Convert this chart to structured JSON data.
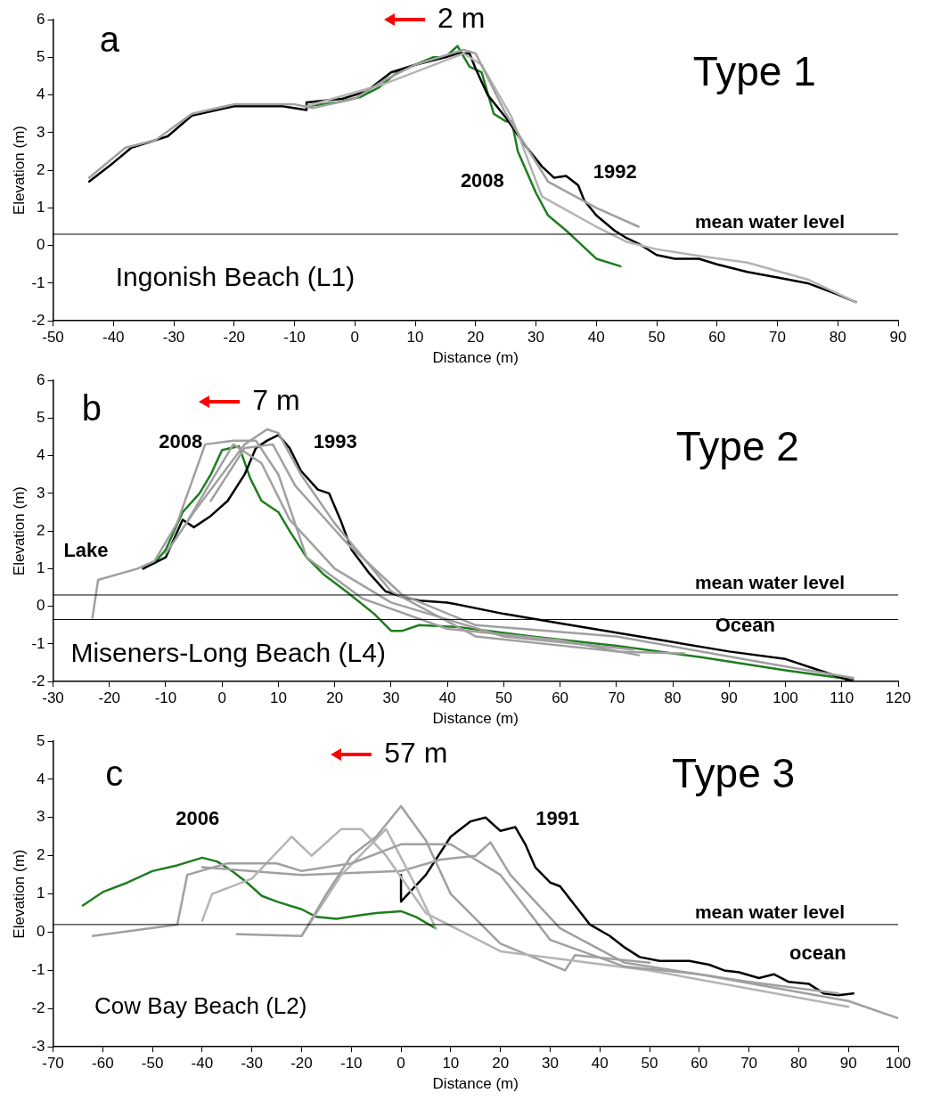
{
  "chart_data": [
    {
      "type": "line",
      "xlabel": "Distance (m)",
      "ylabel": "Elevation (m)",
      "xlim": [
        -50,
        90
      ],
      "ylim": [
        -2,
        6
      ],
      "xticks": [
        -50,
        -40,
        -30,
        -20,
        -10,
        0,
        10,
        20,
        30,
        40,
        50,
        60,
        70,
        80,
        90
      ],
      "yticks": [
        -2,
        -1,
        0,
        1,
        2,
        3,
        4,
        5,
        6
      ],
      "grid": false,
      "legend": false,
      "marker": "none",
      "line_style": "solid",
      "annotations": [
        "a",
        "2 m",
        "Type 1",
        "Ingonish Beach (L1)",
        "2008",
        "1992"
      ],
      "ref_lines": [
        {
          "axis": "y",
          "value": 0.3,
          "label": "mean water level",
          "color": "#000000"
        }
      ],
      "series": [
        {
          "color": "#a0a0a0",
          "x": [
            -44,
            -38,
            -33,
            -27,
            -20,
            -10,
            -7,
            0,
            5,
            10,
            18,
            20,
            25,
            32,
            40,
            47
          ],
          "values": [
            1.8,
            2.6,
            2.8,
            3.5,
            3.75,
            3.75,
            3.65,
            3.9,
            4.4,
            4.8,
            5.2,
            5.1,
            3.5,
            1.7,
            1.0,
            0.5
          ]
        },
        {
          "color": "#b4b4b4",
          "x": [
            -8,
            5,
            18,
            21,
            26,
            31,
            40,
            45,
            50,
            58,
            65,
            75,
            83
          ],
          "values": [
            3.7,
            4.3,
            5.1,
            4.8,
            3.4,
            1.3,
            0.5,
            0.1,
            -0.1,
            -0.3,
            -0.45,
            -0.9,
            -1.5
          ]
        },
        {
          "color": "#000000",
          "x": [
            -44,
            -40,
            -37,
            -33,
            -31,
            -27,
            -20,
            -15,
            -12,
            -8,
            -8,
            -2,
            2,
            6,
            10,
            15,
            17,
            19,
            20,
            22,
            25,
            28,
            31,
            33,
            35,
            37,
            38,
            40,
            43,
            45,
            47,
            50,
            53,
            57,
            60,
            65,
            70,
            75,
            80,
            83
          ],
          "values": [
            1.7,
            2.2,
            2.6,
            2.8,
            2.9,
            3.45,
            3.7,
            3.7,
            3.7,
            3.6,
            3.8,
            3.9,
            4.1,
            4.6,
            4.8,
            5.0,
            5.1,
            5.1,
            4.7,
            4.0,
            3.4,
            2.7,
            2.1,
            1.8,
            1.85,
            1.6,
            1.2,
            0.8,
            0.4,
            0.2,
            0.05,
            -0.25,
            -0.35,
            -0.35,
            -0.5,
            -0.7,
            -0.85,
            -1.0,
            -1.3,
            -1.5
          ]
        },
        {
          "color": "#1e7d1e",
          "x": [
            -8,
            -3,
            1,
            4,
            7,
            10,
            13,
            15,
            17,
            19,
            21,
            23,
            25,
            26,
            27,
            30,
            32,
            35,
            37,
            40,
            44
          ],
          "values": [
            3.7,
            3.8,
            3.95,
            4.2,
            4.6,
            4.8,
            5.0,
            5.0,
            5.3,
            4.75,
            4.6,
            3.5,
            3.3,
            3.3,
            2.5,
            1.4,
            0.8,
            0.4,
            0.1,
            -0.35,
            -0.55
          ]
        }
      ]
    },
    {
      "type": "line",
      "xlabel": "Distance (m)",
      "ylabel": "Elevation (m)",
      "xlim": [
        -30,
        120
      ],
      "ylim": [
        -2,
        6
      ],
      "xticks": [
        -30,
        -20,
        -10,
        0,
        10,
        20,
        30,
        40,
        50,
        60,
        70,
        80,
        90,
        100,
        110,
        120
      ],
      "yticks": [
        -2,
        -1,
        0,
        1,
        2,
        3,
        4,
        5,
        6
      ],
      "grid": false,
      "legend": false,
      "marker": "none",
      "line_style": "solid",
      "annotations": [
        "b",
        "7 m",
        "Type 2",
        "Miseners-Long Beach (L4)",
        "2008",
        "1993",
        "Lake",
        "Ocean"
      ],
      "ref_lines": [
        {
          "axis": "y",
          "value": 0.3,
          "label": "mean water level",
          "color": "#000000"
        },
        {
          "axis": "y",
          "value": -0.35,
          "color": "#000000"
        }
      ],
      "series": [
        {
          "color": "#a0a0a0",
          "x": [
            -23,
            -22,
            -15,
            -12,
            -8,
            -3,
            2,
            6,
            10,
            15,
            25,
            40,
            60,
            74
          ],
          "values": [
            -0.3,
            0.7,
            1.0,
            1.2,
            2.2,
            4.3,
            4.4,
            4.4,
            3.5,
            1.3,
            0.2,
            -0.6,
            -0.9,
            -1.3
          ]
        },
        {
          "color": "#a0a0a0",
          "x": [
            -10,
            -5,
            0,
            4,
            8,
            10,
            14,
            20,
            30,
            45,
            70,
            82
          ],
          "values": [
            1.4,
            2.5,
            3.5,
            4.3,
            4.7,
            4.6,
            3.5,
            2.2,
            0.4,
            -0.8,
            -1.2,
            -1.25
          ]
        },
        {
          "color": "#a0a0a0",
          "x": [
            -6,
            2,
            7,
            12,
            20,
            30,
            50,
            73
          ],
          "values": [
            2.3,
            4.3,
            3.8,
            2.3,
            1.0,
            0.1,
            -0.8,
            -1.15
          ]
        },
        {
          "color": "#a0a0a0",
          "x": [
            -2,
            4,
            9,
            13,
            22,
            32,
            45,
            70,
            100,
            112
          ],
          "values": [
            2.8,
            4.2,
            4.3,
            3.2,
            1.7,
            0.3,
            -0.5,
            -0.8,
            -1.6,
            -1.9
          ]
        },
        {
          "color": "#000000",
          "x": [
            -14,
            -10,
            -7,
            -5,
            -2,
            1,
            4,
            6,
            8,
            10,
            12,
            14,
            17,
            19,
            21,
            23,
            26,
            29,
            32,
            35,
            40,
            50,
            60,
            70,
            80,
            90,
            100,
            106,
            112
          ],
          "values": [
            1.0,
            1.3,
            2.3,
            2.1,
            2.4,
            2.8,
            3.5,
            4.2,
            4.4,
            4.55,
            4.2,
            3.6,
            3.1,
            3.0,
            2.3,
            1.5,
            0.9,
            0.4,
            0.25,
            0.15,
            0.1,
            -0.2,
            -0.45,
            -0.7,
            -0.95,
            -1.2,
            -1.4,
            -1.7,
            -2.0
          ]
        },
        {
          "color": "#1e7d1e",
          "x": [
            -12,
            -10,
            -7,
            -4,
            -2,
            0,
            3,
            5,
            7,
            10,
            12,
            15,
            18,
            22,
            27,
            30,
            32,
            35,
            42,
            55,
            70,
            85,
            100,
            112
          ],
          "values": [
            1.15,
            1.5,
            2.5,
            3.0,
            3.5,
            4.15,
            4.25,
            3.4,
            2.8,
            2.5,
            2.0,
            1.3,
            0.85,
            0.4,
            -0.2,
            -0.65,
            -0.65,
            -0.5,
            -0.55,
            -0.8,
            -1.05,
            -1.35,
            -1.7,
            -1.95
          ]
        }
      ]
    },
    {
      "type": "line",
      "xlabel": "Distance (m)",
      "ylabel": "Elevation (m)",
      "xlim": [
        -70,
        100
      ],
      "ylim": [
        -3,
        5
      ],
      "xticks": [
        -70,
        -60,
        -50,
        -40,
        -30,
        -20,
        -10,
        0,
        10,
        20,
        30,
        40,
        50,
        60,
        70,
        80,
        90,
        100
      ],
      "yticks": [
        -3,
        -2,
        -1,
        0,
        1,
        2,
        3,
        4,
        5
      ],
      "grid": false,
      "legend": false,
      "marker": "none",
      "line_style": "solid",
      "annotations": [
        "c",
        "57 m",
        "Type 3",
        "Cow Bay Beach (L2)",
        "2006",
        "1991",
        "ocean"
      ],
      "ref_lines": [
        {
          "axis": "y",
          "value": 0.2,
          "label": "mean water level",
          "color": "#000000"
        }
      ],
      "series": [
        {
          "color": "#a0a0a0",
          "x": [
            -62,
            -45,
            -43,
            -35,
            -25,
            -20,
            -10,
            0,
            10,
            20,
            30,
            45,
            60,
            90,
            100
          ],
          "values": [
            -0.1,
            0.2,
            1.5,
            1.8,
            1.8,
            1.6,
            1.8,
            2.3,
            2.3,
            1.5,
            -0.2,
            -0.9,
            -1.1,
            -1.8,
            -2.25
          ]
        },
        {
          "color": "#b4b4b4",
          "x": [
            -40,
            -38,
            -30,
            -22,
            -18,
            -12,
            -8,
            -3,
            5,
            20,
            50,
            90
          ],
          "values": [
            0.3,
            1.0,
            1.4,
            2.5,
            2.0,
            2.7,
            2.7,
            2.0,
            0.5,
            -0.5,
            -1.0,
            -1.95
          ]
        },
        {
          "color": "#a0a0a0",
          "x": [
            -33,
            -20,
            -15,
            -10,
            -5,
            0,
            5,
            10,
            20,
            33,
            35,
            50
          ],
          "values": [
            -0.05,
            -0.1,
            1.0,
            2.0,
            2.5,
            3.3,
            2.4,
            1.0,
            -0.3,
            -1.0,
            -0.6,
            -0.8
          ]
        },
        {
          "color": "#b4b4b4",
          "x": [
            -20,
            -12,
            -3,
            3,
            7
          ],
          "values": [
            -0.1,
            1.5,
            2.7,
            1.2,
            0.1
          ]
        },
        {
          "color": "#a0a0a0",
          "x": [
            -40,
            -20,
            0,
            8,
            15,
            18,
            22,
            32,
            45,
            70,
            88
          ],
          "values": [
            1.7,
            1.5,
            1.6,
            1.9,
            2.0,
            2.35,
            1.5,
            0.1,
            -0.8,
            -1.3,
            -1.6
          ]
        },
        {
          "color": "#000000",
          "x": [
            0,
            0,
            5,
            10,
            14,
            17,
            20,
            23,
            25,
            27,
            30,
            32,
            35,
            38,
            42,
            45,
            48,
            52,
            58,
            62,
            65,
            68,
            72,
            75,
            78,
            82,
            85,
            88,
            91
          ],
          "values": [
            1.5,
            0.8,
            1.5,
            2.5,
            2.9,
            3.0,
            2.65,
            2.75,
            2.3,
            1.7,
            1.3,
            1.2,
            0.7,
            0.2,
            -0.1,
            -0.4,
            -0.65,
            -0.75,
            -0.75,
            -0.85,
            -1.0,
            -1.05,
            -1.2,
            -1.1,
            -1.3,
            -1.35,
            -1.6,
            -1.65,
            -1.6
          ]
        },
        {
          "color": "#1e7d1e",
          "x": [
            -64,
            -60,
            -55,
            -50,
            -45,
            -40,
            -37,
            -34,
            -31,
            -28,
            -25,
            -20,
            -17,
            -13,
            -8,
            -5,
            0,
            3,
            7
          ],
          "values": [
            0.7,
            1.05,
            1.3,
            1.6,
            1.75,
            1.95,
            1.85,
            1.6,
            1.3,
            0.95,
            0.8,
            0.6,
            0.4,
            0.35,
            0.45,
            0.5,
            0.55,
            0.4,
            0.1
          ]
        }
      ]
    }
  ]
}
